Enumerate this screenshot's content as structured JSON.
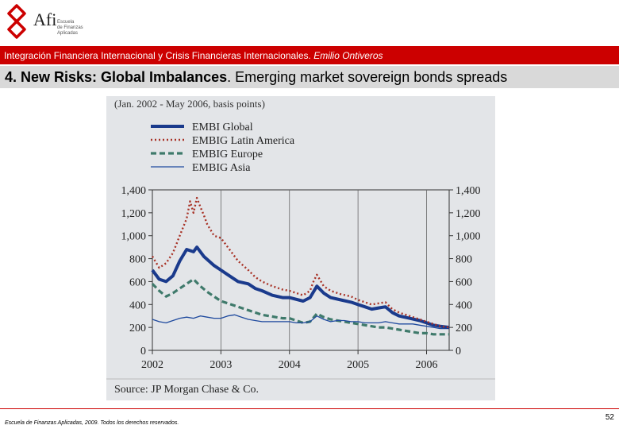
{
  "header": {
    "logo_name": "Afi",
    "logo_sub_lines": [
      "Escuela",
      "de Finanzas",
      "Aplicadas"
    ],
    "subtitle_main": "Integración Financiera Internacional y Crisis Financieras Internacionales. ",
    "subtitle_author": "Emilio Ontiveros",
    "title_bold": "4. New Risks: Global Imbalances",
    "title_rest": ". Emerging market sovereign bonds spreads"
  },
  "footer": {
    "copyright": "Escuela de Finanzas Aplicadas, 2009. Todos los derechos reservados.",
    "page_number": "52"
  },
  "colors": {
    "brand_red": "#cc0000",
    "title_bar": "#d9d9d9",
    "chart_bg": "#e3e5e8",
    "embi_global": "#1a3a8c",
    "embig_latin_america": "#a83226",
    "embig_europe": "#3f7a6b",
    "embig_asia": "#1f4a9e"
  },
  "chart_data": {
    "type": "line",
    "title": "(Jan. 2002 - May 2006, basis points)",
    "source": "Source: JP Morgan Chase & Co.",
    "xlabel": "",
    "ylabel": "",
    "xlim": [
      2002,
      2006.33
    ],
    "ylim": [
      0,
      1400
    ],
    "x_ticks": [
      2002,
      2003,
      2004,
      2005,
      2006
    ],
    "y_ticks": [
      0,
      200,
      400,
      600,
      800,
      1000,
      1200,
      1400
    ],
    "y_tick_labels": [
      "0",
      "200",
      "400",
      "600",
      "800",
      "1,000",
      "1,200",
      "1,400"
    ],
    "grid": "vertical",
    "legend": "top-left",
    "series": [
      {
        "name": "EMBI Global",
        "style": "solid-thick",
        "x": [
          2002.0,
          2002.1,
          2002.2,
          2002.3,
          2002.4,
          2002.5,
          2002.6,
          2002.65,
          2002.75,
          2002.9,
          2003.0,
          2003.1,
          2003.25,
          2003.4,
          2003.5,
          2003.6,
          2003.75,
          2003.9,
          2004.0,
          2004.2,
          2004.3,
          2004.4,
          2004.5,
          2004.6,
          2004.75,
          2004.9,
          2005.0,
          2005.1,
          2005.2,
          2005.3,
          2005.4,
          2005.5,
          2005.6,
          2005.75,
          2005.9,
          2006.0,
          2006.1,
          2006.2,
          2006.33
        ],
        "values": [
          700,
          620,
          600,
          650,
          780,
          880,
          860,
          900,
          820,
          740,
          700,
          660,
          600,
          580,
          540,
          520,
          480,
          460,
          460,
          430,
          460,
          560,
          500,
          460,
          440,
          420,
          400,
          380,
          360,
          370,
          380,
          330,
          300,
          280,
          260,
          240,
          220,
          210,
          200
        ]
      },
      {
        "name": "EMBIG Latin America",
        "style": "dotted",
        "x": [
          2002.0,
          2002.1,
          2002.2,
          2002.3,
          2002.4,
          2002.5,
          2002.55,
          2002.6,
          2002.65,
          2002.7,
          2002.75,
          2002.8,
          2002.9,
          2003.0,
          2003.1,
          2003.25,
          2003.4,
          2003.5,
          2003.6,
          2003.75,
          2003.9,
          2004.0,
          2004.2,
          2004.3,
          2004.35,
          2004.4,
          2004.5,
          2004.6,
          2004.75,
          2004.9,
          2005.0,
          2005.1,
          2005.2,
          2005.3,
          2005.4,
          2005.5,
          2005.6,
          2005.75,
          2005.9,
          2006.0,
          2006.1,
          2006.2,
          2006.33
        ],
        "values": [
          820,
          720,
          760,
          850,
          1000,
          1150,
          1300,
          1200,
          1330,
          1250,
          1180,
          1100,
          1000,
          980,
          900,
          780,
          700,
          640,
          600,
          560,
          530,
          520,
          480,
          520,
          600,
          660,
          560,
          520,
          490,
          470,
          440,
          420,
          400,
          410,
          420,
          360,
          330,
          300,
          270,
          250,
          230,
          210,
          200
        ]
      },
      {
        "name": "EMBIG Europe",
        "style": "dashed",
        "x": [
          2002.0,
          2002.1,
          2002.2,
          2002.3,
          2002.4,
          2002.5,
          2002.6,
          2002.7,
          2002.8,
          2002.9,
          2003.0,
          2003.1,
          2003.2,
          2003.3,
          2003.4,
          2003.5,
          2003.6,
          2003.7,
          2003.8,
          2003.9,
          2004.0,
          2004.1,
          2004.2,
          2004.3,
          2004.4,
          2004.5,
          2004.6,
          2004.7,
          2004.8,
          2004.9,
          2005.0,
          2005.1,
          2005.2,
          2005.3,
          2005.4,
          2005.5,
          2005.6,
          2005.7,
          2005.8,
          2005.9,
          2006.0,
          2006.1,
          2006.2,
          2006.33
        ],
        "values": [
          580,
          520,
          470,
          500,
          540,
          580,
          620,
          560,
          510,
          470,
          430,
          410,
          390,
          370,
          350,
          330,
          310,
          300,
          290,
          280,
          280,
          260,
          240,
          250,
          320,
          290,
          270,
          260,
          250,
          240,
          230,
          220,
          210,
          200,
          200,
          190,
          180,
          170,
          160,
          150,
          150,
          140,
          140,
          140
        ]
      },
      {
        "name": "EMBIG Asia",
        "style": "solid-thin",
        "x": [
          2002.0,
          2002.1,
          2002.2,
          2002.3,
          2002.4,
          2002.5,
          2002.6,
          2002.7,
          2002.8,
          2002.9,
          2003.0,
          2003.1,
          2003.2,
          2003.3,
          2003.4,
          2003.5,
          2003.6,
          2003.7,
          2003.8,
          2003.9,
          2004.0,
          2004.1,
          2004.2,
          2004.3,
          2004.4,
          2004.5,
          2004.6,
          2004.7,
          2004.8,
          2004.9,
          2005.0,
          2005.1,
          2005.2,
          2005.3,
          2005.4,
          2005.5,
          2005.6,
          2005.7,
          2005.8,
          2005.9,
          2006.0,
          2006.1,
          2006.2,
          2006.33
        ],
        "values": [
          270,
          250,
          240,
          260,
          280,
          290,
          280,
          300,
          290,
          280,
          280,
          300,
          310,
          290,
          270,
          260,
          250,
          250,
          250,
          250,
          250,
          240,
          240,
          250,
          300,
          270,
          250,
          260,
          260,
          250,
          250,
          240,
          240,
          240,
          250,
          240,
          230,
          230,
          230,
          220,
          210,
          200,
          190,
          190
        ]
      }
    ]
  }
}
